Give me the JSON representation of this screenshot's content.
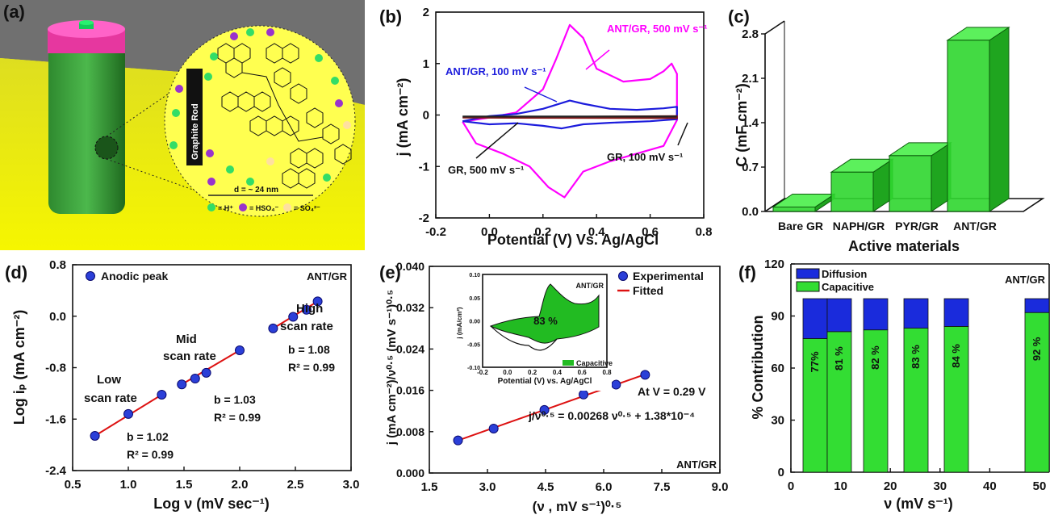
{
  "panels": {
    "a": {
      "label": "(a)",
      "rod_label": "Graphite Rod",
      "distance": "d = ~ 24 nm",
      "legend": {
        "h": "= H⁺",
        "hso4": "= HSO₄⁻",
        "so4": "= SO₄²⁻"
      }
    }
  },
  "chart_data": [
    {
      "id": "b",
      "label": "(b)",
      "type": "line",
      "xlabel": "Potential (V) Vs. Ag/AgCl",
      "ylabel": "j (mA cm⁻²)",
      "xlim": [
        -0.2,
        0.8
      ],
      "ylim": [
        -2,
        2
      ],
      "xticks": [
        -0.2,
        0.0,
        0.2,
        0.4,
        0.6,
        0.8
      ],
      "yticks": [
        -2,
        -1,
        0,
        1,
        2
      ],
      "colors": {
        "ant500": "#ff00ff",
        "ant100": "#1c1cdc",
        "gr": "#8b1a1a",
        "gr2": "#222222"
      },
      "series": [
        {
          "key": "ant500",
          "name": "ANT/GR, 500 mV s⁻¹",
          "forward": [
            [
              -0.1,
              -0.13
            ],
            [
              0.0,
              -0.05
            ],
            [
              0.1,
              0.05
            ],
            [
              0.2,
              0.5
            ],
            [
              0.25,
              1.1
            ],
            [
              0.3,
              1.75
            ],
            [
              0.35,
              1.5
            ],
            [
              0.4,
              0.9
            ],
            [
              0.5,
              0.65
            ],
            [
              0.6,
              0.7
            ],
            [
              0.65,
              0.85
            ],
            [
              0.68,
              1.0
            ],
            [
              0.7,
              0.8
            ]
          ],
          "reverse": [
            [
              0.7,
              0.8
            ],
            [
              0.7,
              -0.1
            ],
            [
              0.65,
              -0.6
            ],
            [
              0.55,
              -0.75
            ],
            [
              0.45,
              -0.9
            ],
            [
              0.35,
              -1.1
            ],
            [
              0.28,
              -1.6
            ],
            [
              0.22,
              -1.4
            ],
            [
              0.15,
              -1.0
            ],
            [
              0.05,
              -0.75
            ],
            [
              -0.05,
              -0.55
            ],
            [
              -0.1,
              -0.13
            ]
          ]
        },
        {
          "key": "ant100",
          "name": "ANT/GR, 100 mV s⁻¹",
          "forward": [
            [
              -0.1,
              -0.12
            ],
            [
              0.0,
              -0.02
            ],
            [
              0.1,
              0.02
            ],
            [
              0.2,
              0.12
            ],
            [
              0.3,
              0.28
            ],
            [
              0.35,
              0.22
            ],
            [
              0.45,
              0.12
            ],
            [
              0.55,
              0.1
            ],
            [
              0.65,
              0.13
            ],
            [
              0.7,
              0.16
            ]
          ],
          "reverse": [
            [
              0.7,
              0.16
            ],
            [
              0.7,
              -0.08
            ],
            [
              0.6,
              -0.12
            ],
            [
              0.45,
              -0.15
            ],
            [
              0.35,
              -0.18
            ],
            [
              0.27,
              -0.26
            ],
            [
              0.2,
              -0.21
            ],
            [
              0.1,
              -0.16
            ],
            [
              0.0,
              -0.18
            ],
            [
              -0.1,
              -0.12
            ]
          ]
        },
        {
          "key": "gr",
          "name": "GR, 500 mV s⁻¹",
          "forward": [
            [
              -0.1,
              -0.05
            ],
            [
              0.7,
              -0.02
            ]
          ],
          "reverse": [
            [
              0.7,
              -0.02
            ],
            [
              0.7,
              -0.06
            ],
            [
              -0.1,
              -0.05
            ]
          ]
        },
        {
          "key": "gr2",
          "name": "GR, 100 mV s⁻¹",
          "forward": [
            [
              -0.1,
              -0.03
            ],
            [
              0.7,
              -0.03
            ]
          ],
          "reverse": []
        }
      ]
    },
    {
      "id": "c",
      "label": "(c)",
      "type": "bar",
      "xlabel": "Active materials",
      "ylabel": "C (mF cm⁻²)",
      "ylim": [
        0,
        2.8
      ],
      "yticks": [
        "0.0",
        "0.7",
        "1.4",
        "2.1",
        "2.8"
      ],
      "categories": [
        "Bare GR",
        "NAPH/GR",
        "PYR/GR",
        "ANT/GR"
      ],
      "values": [
        0.07,
        0.62,
        0.88,
        2.7
      ],
      "color": "#2fd62f"
    },
    {
      "id": "d",
      "label": "(d)",
      "type": "scatter",
      "xlabel": "Log ν (mV sec⁻¹)",
      "ylabel": "Log iₚ (mA cm⁻²)",
      "xlim": [
        0.5,
        3.0
      ],
      "ylim": [
        -2.4,
        0.8
      ],
      "xticks": [
        "0.5",
        "1.0",
        "1.5",
        "2.0",
        "2.5",
        "3.0"
      ],
      "yticks": [
        "-2.4",
        "-1.6",
        "-0.8",
        "0.0",
        "0.8"
      ],
      "legend": "Anodic peak",
      "corner": "ANT/GR",
      "points": [
        [
          0.7,
          -1.86
        ],
        [
          1.0,
          -1.52
        ],
        [
          1.3,
          -1.22
        ],
        [
          1.48,
          -1.06
        ],
        [
          1.6,
          -0.97
        ],
        [
          1.7,
          -0.88
        ],
        [
          2.0,
          -0.53
        ],
        [
          2.3,
          -0.19
        ],
        [
          2.48,
          -0.01
        ],
        [
          2.6,
          0.1
        ],
        [
          2.7,
          0.23
        ]
      ],
      "fits": [
        [
          [
            0.7,
            -1.86
          ],
          [
            1.3,
            -1.22
          ]
        ],
        [
          [
            1.48,
            -1.06
          ],
          [
            2.0,
            -0.53
          ]
        ],
        [
          [
            2.3,
            -0.19
          ],
          [
            2.7,
            0.23
          ]
        ]
      ],
      "annotations": [
        "Low",
        "scan rate",
        "b = 1.02",
        "R² = 0.99",
        "Mid",
        "scan rate",
        "b = 1.03",
        "R² = 0.99",
        "High",
        "scan rate",
        "b = 1.08",
        "R² = 0.99"
      ]
    },
    {
      "id": "e",
      "label": "(e)",
      "type": "scatter",
      "xlabel": "(ν , mV s⁻¹)⁰·⁵",
      "ylabel": "j (mA cm⁻²)/ν⁰·⁵ (mV s⁻¹)⁰·⁵",
      "xlim": [
        1.5,
        9.0
      ],
      "ylim": [
        0.0,
        0.04
      ],
      "xticks": [
        "1.5",
        "3.0",
        "4.5",
        "6.0",
        "7.5",
        "9.0"
      ],
      "yticks": [
        "0.000",
        "0.008",
        "0.016",
        "0.024",
        "0.032",
        "0.040"
      ],
      "legend": [
        "Experimental",
        "Fitted"
      ],
      "points": [
        [
          2.24,
          0.0063
        ],
        [
          3.16,
          0.0086
        ],
        [
          4.47,
          0.0122
        ],
        [
          5.48,
          0.0152
        ],
        [
          6.32,
          0.0171
        ],
        [
          7.07,
          0.019
        ]
      ],
      "fit": [
        [
          2.24,
          0.0063
        ],
        [
          7.07,
          0.0191
        ]
      ],
      "annotations": [
        "At V = 0.29 V",
        "j/ν⁰·⁵ = 0.00268 ν⁰·⁵ + 1.38*10⁻⁴",
        "ANT/GR"
      ],
      "inset": {
        "xlabel": "Potential (V) vs. Ag/AgCl",
        "ylabel": "j (mA/cm²)",
        "xticks": [
          "-0.2",
          "0.0",
          "0.2",
          "0.4",
          "0.6",
          "0.8"
        ],
        "yticks": [
          "-0.10",
          "-0.05",
          "0.00",
          "0.05",
          "0.10"
        ],
        "percent": "83 %",
        "corner": "ANT/GR",
        "legend": "Capacitive"
      }
    },
    {
      "id": "f",
      "label": "(f)",
      "type": "bar",
      "stacked": true,
      "xlabel": "ν (mV s⁻¹)",
      "ylabel": "% Contribution",
      "ylim": [
        0,
        120
      ],
      "yticks": [
        "0",
        "30",
        "60",
        "90",
        "120"
      ],
      "xticks": [
        "0",
        "10",
        "20",
        "30",
        "40",
        "50"
      ],
      "categories": [
        "5",
        "10",
        "20",
        "30",
        "40",
        "50"
      ],
      "series": [
        {
          "name": "Capacitive",
          "values": [
            77,
            81,
            82,
            83,
            84,
            92
          ],
          "color": "#33dd33"
        },
        {
          "name": "Diffusion",
          "values": [
            23,
            19,
            18,
            17,
            16,
            8
          ],
          "color": "#1a2bdc"
        }
      ],
      "labels": [
        "77%",
        "81 %",
        "82 %",
        "83 %",
        "84 %",
        "92 %"
      ],
      "corner": "ANT/GR"
    }
  ]
}
